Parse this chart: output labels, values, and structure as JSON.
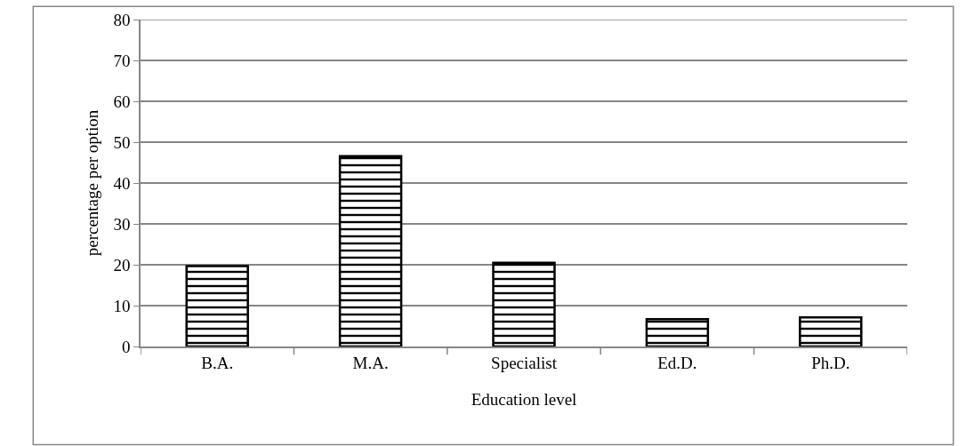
{
  "chart_data": {
    "type": "bar",
    "xlabel": "Education level",
    "ylabel": "percentage per option",
    "categories": [
      "B.A.",
      "M.A.",
      "Specialist",
      "Ed.D.",
      "Ph.D."
    ],
    "values": [
      19.7,
      46.6,
      20.5,
      6.7,
      7.1
    ],
    "color": "#000000",
    "ylim": [
      0,
      80
    ],
    "yticks": [
      0,
      10,
      20,
      30,
      40,
      50,
      60,
      70,
      80
    ],
    "grid": "y",
    "legend": false
  }
}
